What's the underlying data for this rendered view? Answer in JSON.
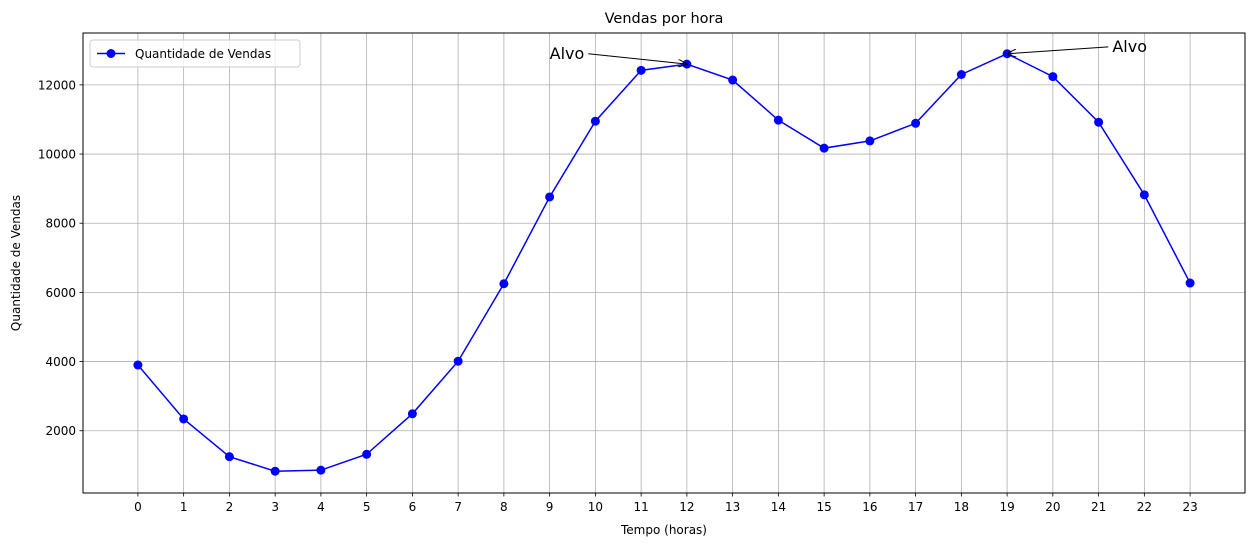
{
  "chart_data": {
    "type": "line",
    "title": "Vendas por hora",
    "xlabel": "Tempo (horas)",
    "ylabel": "Quantidade de Vendas",
    "x": [
      0,
      1,
      2,
      3,
      4,
      5,
      6,
      7,
      8,
      9,
      10,
      11,
      12,
      13,
      14,
      15,
      16,
      17,
      18,
      19,
      20,
      21,
      22,
      23
    ],
    "x_tick_labels": [
      "0",
      "1",
      "2",
      "3",
      "4",
      "5",
      "6",
      "7",
      "8",
      "9",
      "10",
      "11",
      "12",
      "13",
      "14",
      "15",
      "16",
      "17",
      "18",
      "19",
      "20",
      "21",
      "22",
      "23"
    ],
    "y_ticks": [
      2000,
      4000,
      6000,
      8000,
      10000,
      12000
    ],
    "y_tick_labels": [
      "2000",
      "4000",
      "6000",
      "8000",
      "10000",
      "12000"
    ],
    "xlim": [
      -1.2,
      24.2
    ],
    "ylim": [
      200,
      13500
    ],
    "grid": true,
    "legend_position": "top-left",
    "series": [
      {
        "name": "Quantidade de Vendas",
        "color": "#0000ff",
        "marker": "circle",
        "values": [
          3900,
          2340,
          1250,
          830,
          860,
          1320,
          2490,
          4010,
          6250,
          8760,
          10950,
          12420,
          12600,
          12140,
          10980,
          10170,
          10380,
          10890,
          12300,
          12900,
          12240,
          10920,
          8820,
          6270
        ]
      }
    ],
    "annotations": [
      {
        "text": "Alvo",
        "target_x": 12,
        "target_y": 12600,
        "text_x": 9,
        "text_y": 12900
      },
      {
        "text": "Alvo",
        "target_x": 19,
        "target_y": 12900,
        "text_x": 21.3,
        "text_y": 13100
      }
    ]
  }
}
